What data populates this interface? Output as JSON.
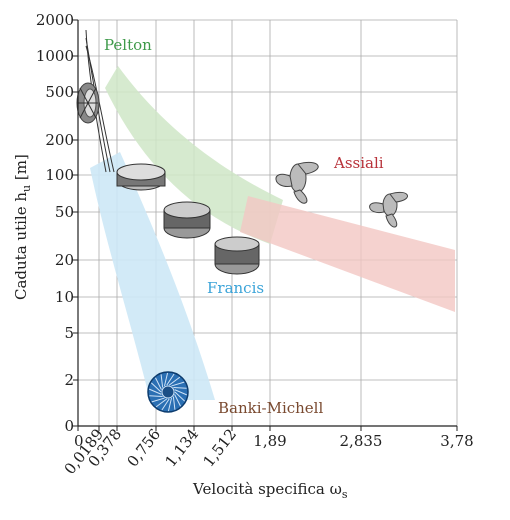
{
  "chart_data": {
    "type": "area",
    "xlabel": "Velocità specifica ω",
    "xlabel_sub": "s",
    "ylabel": "Caduta utile  h",
    "ylabel_sub": "u",
    "ylabel_unit": " [m]",
    "ylim": [
      0,
      2000
    ],
    "y_scale": "log-like",
    "y_ticks": [
      0,
      2,
      5,
      10,
      20,
      50,
      100,
      200,
      500,
      1000,
      2000
    ],
    "y_tick_labels": [
      "0",
      "2",
      "5",
      "10",
      "20",
      "50",
      "100",
      "200",
      "500",
      "1000",
      "2000"
    ],
    "x_ticks": [
      0,
      0.0189,
      0.378,
      0.756,
      1.134,
      1.512,
      1.89,
      2.835,
      3.78
    ],
    "x_tick_labels": [
      "0",
      "0,0189",
      "0,378",
      "0,756",
      "1,134",
      "1,512",
      "1,89",
      "2,835",
      "3,78"
    ],
    "grid": true,
    "regions": [
      {
        "name": "Pelton",
        "color": "#3f9a4a",
        "fill": "#cfe6c7"
      },
      {
        "name": "Francis",
        "color": "#3aa3d8",
        "fill": "#cde8f6"
      },
      {
        "name": "Assiali",
        "color": "#b8323a",
        "fill": "#f2c7c3"
      },
      {
        "name": "Banki-Michell",
        "color": "#7a4a30",
        "fill": "#2a6fb3"
      }
    ]
  }
}
